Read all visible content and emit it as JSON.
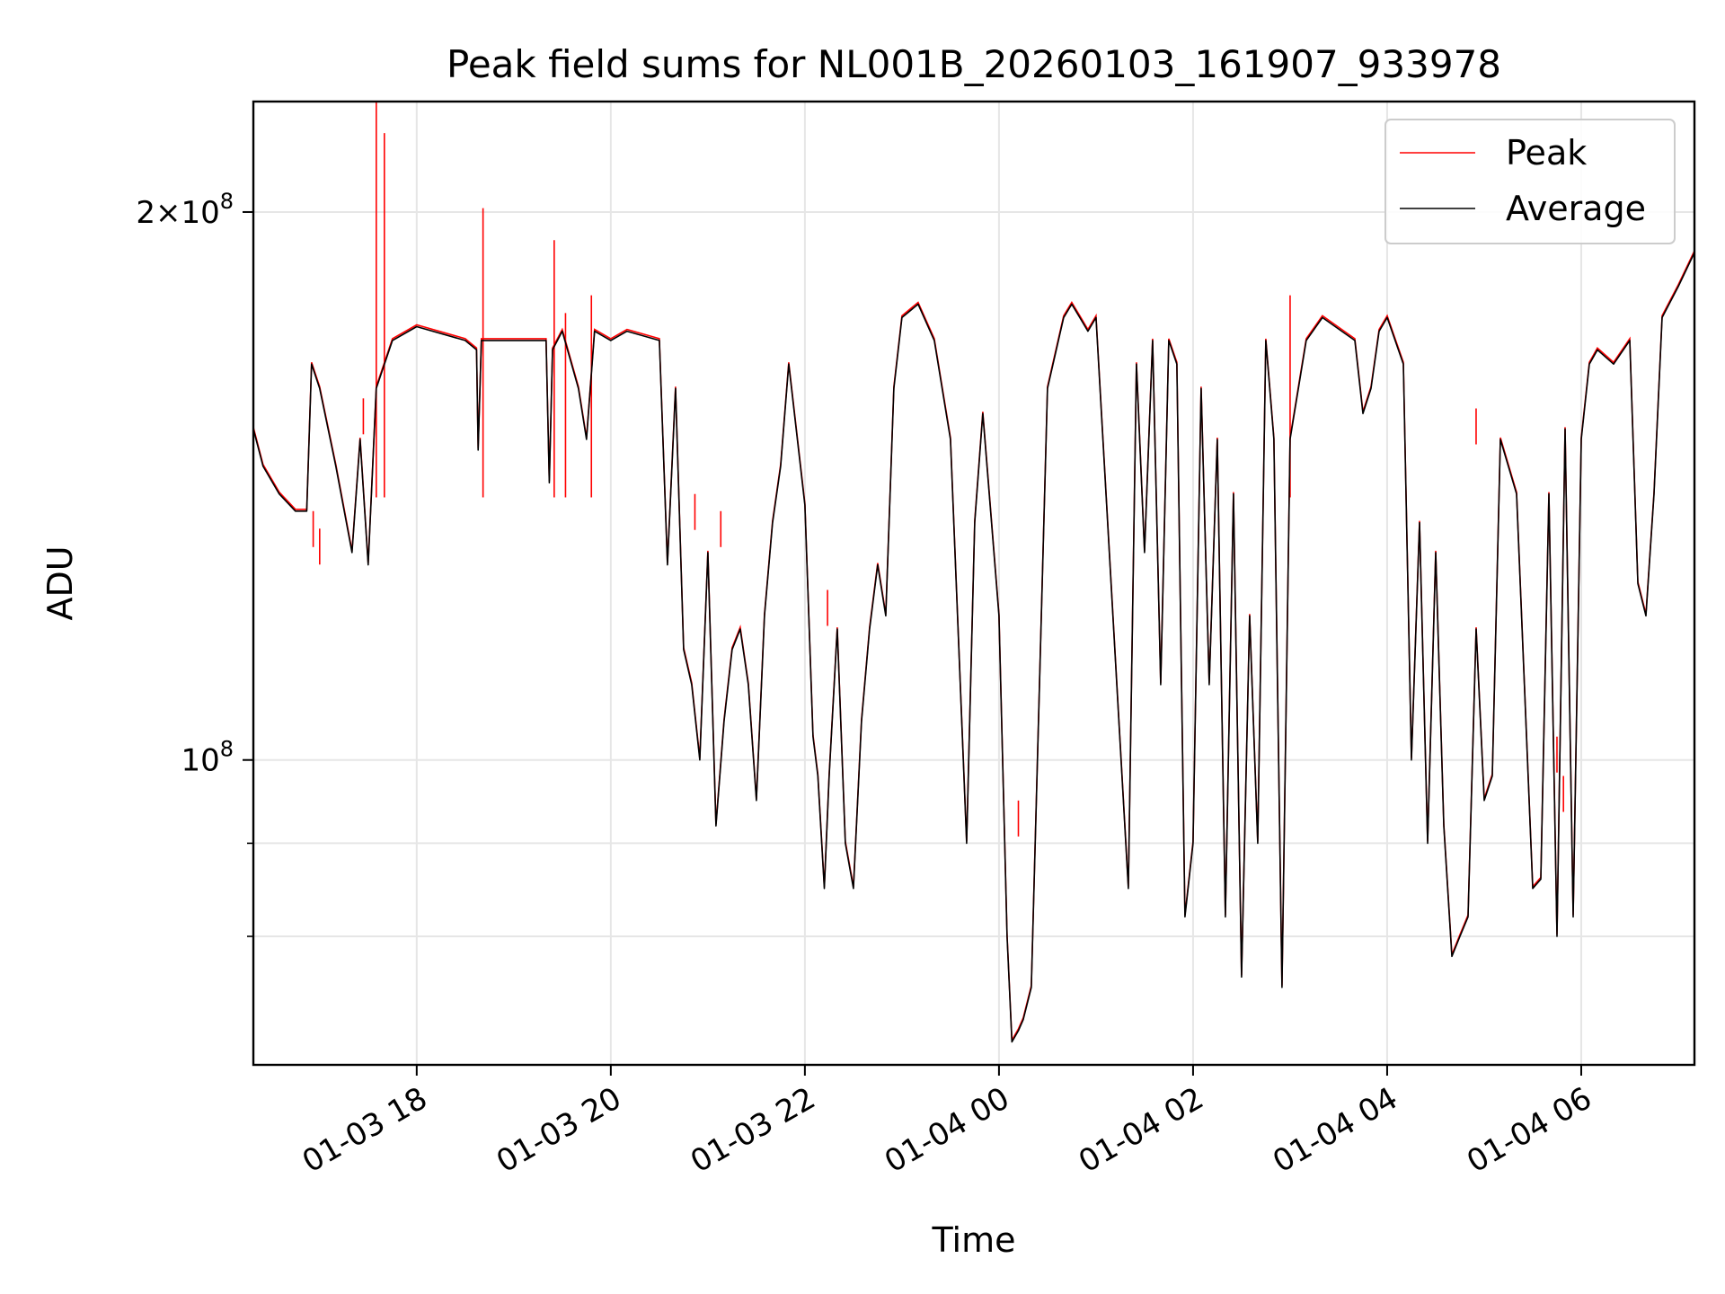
{
  "chart_data": {
    "type": "line",
    "title": "Peak field sums for NL001B_20260103_161907_933978",
    "xlabel": "Time",
    "ylabel": "ADU",
    "x_range": [
      "2026-01-03 16:19",
      "2026-01-04 07:10"
    ],
    "y_scale": "log",
    "ylim": [
      68000000,
      230000000
    ],
    "grid": true,
    "legend_position": "top-right",
    "x_ticks": [
      {
        "value": "2026-01-03 18:00",
        "label": "01-03 18"
      },
      {
        "value": "2026-01-03 20:00",
        "label": "01-03 20"
      },
      {
        "value": "2026-01-03 22:00",
        "label": "01-03 22"
      },
      {
        "value": "2026-01-04 00:00",
        "label": "01-04 00"
      },
      {
        "value": "2026-01-04 02:00",
        "label": "01-04 02"
      },
      {
        "value": "2026-01-04 04:00",
        "label": "01-04 04"
      },
      {
        "value": "2026-01-04 06:00",
        "label": "01-04 06"
      }
    ],
    "y_ticks": [
      {
        "value": 100000000,
        "base": "10",
        "exp": "8",
        "coef": ""
      },
      {
        "value": 200000000,
        "base": "10",
        "exp": "8",
        "coef": "2"
      }
    ],
    "y_minor_ticks": [
      80000000,
      90000000
    ],
    "series": [
      {
        "name": "Peak",
        "color": "#ff0000",
        "spikes": [
          [
            "2026-01-03 16:56",
            137000000
          ],
          [
            "2026-01-03 17:00",
            134000000
          ],
          [
            "2026-01-03 17:27",
            158000000
          ],
          [
            "2026-01-03 17:35",
            230000000
          ],
          [
            "2026-01-03 17:40",
            221000000
          ],
          [
            "2026-01-03 18:41",
            201000000
          ],
          [
            "2026-01-03 19:25",
            193000000
          ],
          [
            "2026-01-03 19:32",
            176000000
          ],
          [
            "2026-01-03 19:48",
            180000000
          ],
          [
            "2026-01-03 20:52",
            140000000
          ],
          [
            "2026-01-03 21:08",
            137000000
          ],
          [
            "2026-01-03 22:14",
            124000000
          ],
          [
            "2026-01-04 00:12",
            95000000
          ],
          [
            "2026-01-04 03:00",
            180000000
          ],
          [
            "2026-01-04 04:55",
            156000000
          ],
          [
            "2026-01-04 05:45",
            103000000
          ],
          [
            "2026-01-04 05:49",
            98000000
          ]
        ]
      },
      {
        "name": "Average",
        "color": "#000000",
        "x": [
          "2026-01-03 16:19",
          "2026-01-03 16:25",
          "2026-01-03 16:35",
          "2026-01-03 16:45",
          "2026-01-03 16:52",
          "2026-01-03 16:55",
          "2026-01-03 17:00",
          "2026-01-03 17:10",
          "2026-01-03 17:20",
          "2026-01-03 17:25",
          "2026-01-03 17:30",
          "2026-01-03 17:35",
          "2026-01-03 17:45",
          "2026-01-03 18:00",
          "2026-01-03 18:30",
          "2026-01-03 18:37",
          "2026-01-03 18:38",
          "2026-01-03 18:40",
          "2026-01-03 19:00",
          "2026-01-03 19:20",
          "2026-01-03 19:22",
          "2026-01-03 19:24",
          "2026-01-03 19:30",
          "2026-01-03 19:40",
          "2026-01-03 19:45",
          "2026-01-03 19:50",
          "2026-01-03 20:00",
          "2026-01-03 20:10",
          "2026-01-03 20:30",
          "2026-01-03 20:35",
          "2026-01-03 20:40",
          "2026-01-03 20:45",
          "2026-01-03 20:50",
          "2026-01-03 20:55",
          "2026-01-03 21:00",
          "2026-01-03 21:05",
          "2026-01-03 21:10",
          "2026-01-03 21:15",
          "2026-01-03 21:20",
          "2026-01-03 21:25",
          "2026-01-03 21:30",
          "2026-01-03 21:35",
          "2026-01-03 21:40",
          "2026-01-03 21:45",
          "2026-01-03 21:50",
          "2026-01-03 22:00",
          "2026-01-03 22:05",
          "2026-01-03 22:08",
          "2026-01-03 22:12",
          "2026-01-03 22:15",
          "2026-01-03 22:20",
          "2026-01-03 22:25",
          "2026-01-03 22:30",
          "2026-01-03 22:35",
          "2026-01-03 22:40",
          "2026-01-03 22:45",
          "2026-01-03 22:50",
          "2026-01-03 22:55",
          "2026-01-03 23:00",
          "2026-01-03 23:10",
          "2026-01-03 23:20",
          "2026-01-03 23:30",
          "2026-01-03 23:40",
          "2026-01-03 23:45",
          "2026-01-03 23:50",
          "2026-01-04 00:00",
          "2026-01-04 00:05",
          "2026-01-04 00:08",
          "2026-01-04 00:12",
          "2026-01-04 00:15",
          "2026-01-04 00:20",
          "2026-01-04 00:30",
          "2026-01-04 00:40",
          "2026-01-04 00:45",
          "2026-01-04 00:50",
          "2026-01-04 00:55",
          "2026-01-04 01:00",
          "2026-01-04 01:20",
          "2026-01-04 01:25",
          "2026-01-04 01:30",
          "2026-01-04 01:35",
          "2026-01-04 01:40",
          "2026-01-04 01:45",
          "2026-01-04 01:50",
          "2026-01-04 01:55",
          "2026-01-04 02:00",
          "2026-01-04 02:05",
          "2026-01-04 02:10",
          "2026-01-04 02:15",
          "2026-01-04 02:20",
          "2026-01-04 02:25",
          "2026-01-04 02:30",
          "2026-01-04 02:35",
          "2026-01-04 02:40",
          "2026-01-04 02:45",
          "2026-01-04 02:50",
          "2026-01-04 02:55",
          "2026-01-04 03:00",
          "2026-01-04 03:10",
          "2026-01-04 03:20",
          "2026-01-04 03:40",
          "2026-01-04 03:45",
          "2026-01-04 03:50",
          "2026-01-04 03:55",
          "2026-01-04 04:00",
          "2026-01-04 04:10",
          "2026-01-04 04:15",
          "2026-01-04 04:20",
          "2026-01-04 04:25",
          "2026-01-04 04:30",
          "2026-01-04 04:35",
          "2026-01-04 04:40",
          "2026-01-04 04:45",
          "2026-01-04 04:50",
          "2026-01-04 04:55",
          "2026-01-04 05:00",
          "2026-01-04 05:05",
          "2026-01-04 05:10",
          "2026-01-04 05:20",
          "2026-01-04 05:30",
          "2026-01-04 05:35",
          "2026-01-04 05:40",
          "2026-01-04 05:45",
          "2026-01-04 05:50",
          "2026-01-04 05:55",
          "2026-01-04 06:00",
          "2026-01-04 06:05",
          "2026-01-04 06:10",
          "2026-01-04 06:20",
          "2026-01-04 06:30",
          "2026-01-04 06:35",
          "2026-01-04 06:40",
          "2026-01-04 06:45",
          "2026-01-04 06:50",
          "2026-01-04 07:00",
          "2026-01-04 07:10"
        ],
        "values": [
          152000000,
          145000000,
          140000000,
          137000000,
          137000000,
          165000000,
          160000000,
          145000000,
          130000000,
          150000000,
          128000000,
          160000000,
          170000000,
          173000000,
          170000000,
          168000000,
          148000000,
          170000000,
          170000000,
          170000000,
          142000000,
          168000000,
          172000000,
          160000000,
          150000000,
          172000000,
          170000000,
          172000000,
          170000000,
          128000000,
          160000000,
          115000000,
          110000000,
          100000000,
          130000000,
          92000000,
          105000000,
          115000000,
          118000000,
          110000000,
          95000000,
          120000000,
          135000000,
          145000000,
          165000000,
          138000000,
          103000000,
          98000000,
          85000000,
          98000000,
          118000000,
          90000000,
          85000000,
          105000000,
          118000000,
          128000000,
          120000000,
          160000000,
          175000000,
          178000000,
          170000000,
          150000000,
          90000000,
          135000000,
          155000000,
          120000000,
          80000000,
          70000000,
          71000000,
          72000000,
          75000000,
          160000000,
          175000000,
          178000000,
          175000000,
          172000000,
          175000000,
          85000000,
          165000000,
          130000000,
          170000000,
          110000000,
          170000000,
          165000000,
          82000000,
          90000000,
          160000000,
          110000000,
          150000000,
          82000000,
          140000000,
          76000000,
          120000000,
          90000000,
          170000000,
          150000000,
          75000000,
          150000000,
          170000000,
          175000000,
          170000000,
          155000000,
          160000000,
          172000000,
          175000000,
          165000000,
          100000000,
          135000000,
          90000000,
          130000000,
          92000000,
          78000000,
          80000000,
          82000000,
          118000000,
          95000000,
          98000000,
          150000000,
          140000000,
          85000000,
          86000000,
          140000000,
          80000000,
          152000000,
          82000000,
          150000000,
          165000000,
          168000000,
          165000000,
          170000000,
          125000000,
          120000000,
          140000000,
          175000000,
          182000000,
          190000000
        ]
      }
    ]
  }
}
